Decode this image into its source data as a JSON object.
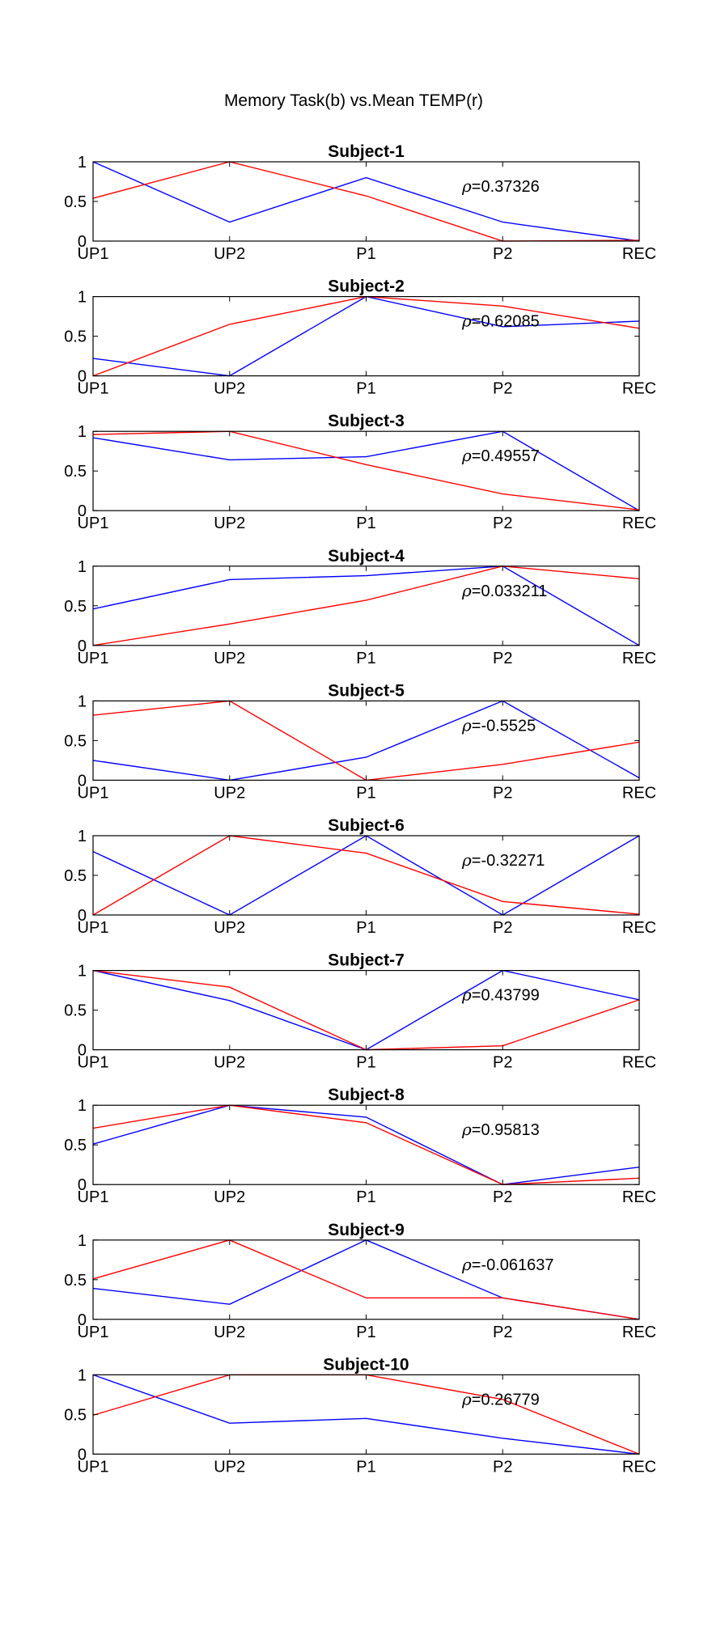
{
  "figure_title": "Memory Task(b) vs.Mean TEMP(r)",
  "colors": {
    "memory_task": "#0000ff",
    "mean_temp": "#ff0000",
    "axes": "#000000"
  },
  "chart_data": [
    {
      "type": "line",
      "title": "Subject-1",
      "categories": [
        "UP1",
        "UP2",
        "P1",
        "P2",
        "REC"
      ],
      "yticks": [
        "0",
        "0.5",
        "1"
      ],
      "ylim": [
        0,
        1
      ],
      "annotation": "=0.37326",
      "series": [
        {
          "color": "#0000ff",
          "values": [
            1.0,
            0.24,
            0.8,
            0.24,
            0.0
          ]
        },
        {
          "color": "#ff0000",
          "values": [
            0.54,
            1.0,
            0.57,
            0.0,
            0.01
          ]
        }
      ]
    },
    {
      "type": "line",
      "title": "Subject-2",
      "categories": [
        "UP1",
        "UP2",
        "P1",
        "P2",
        "REC"
      ],
      "yticks": [
        "0",
        "0.5",
        "1"
      ],
      "ylim": [
        0,
        1
      ],
      "annotation": "=0.62085",
      "series": [
        {
          "color": "#0000ff",
          "values": [
            0.22,
            0.0,
            1.0,
            0.62,
            0.69
          ]
        },
        {
          "color": "#ff0000",
          "values": [
            0.0,
            0.65,
            1.0,
            0.88,
            0.6
          ]
        }
      ]
    },
    {
      "type": "line",
      "title": "Subject-3",
      "categories": [
        "UP1",
        "UP2",
        "P1",
        "P2",
        "REC"
      ],
      "yticks": [
        "0",
        "0.5",
        "1"
      ],
      "ylim": [
        0,
        1
      ],
      "annotation": "=0.49557",
      "series": [
        {
          "color": "#0000ff",
          "values": [
            0.92,
            0.64,
            0.68,
            1.0,
            0.0
          ]
        },
        {
          "color": "#ff0000",
          "values": [
            0.96,
            1.0,
            0.58,
            0.21,
            0.01
          ]
        }
      ]
    },
    {
      "type": "line",
      "title": "Subject-4",
      "categories": [
        "UP1",
        "UP2",
        "P1",
        "P2",
        "REC"
      ],
      "yticks": [
        "0",
        "0.5",
        "1"
      ],
      "ylim": [
        0,
        1
      ],
      "annotation": "=0.033211",
      "series": [
        {
          "color": "#0000ff",
          "values": [
            0.46,
            0.83,
            0.88,
            1.0,
            0.0
          ]
        },
        {
          "color": "#ff0000",
          "values": [
            0.0,
            0.27,
            0.57,
            1.0,
            0.84
          ]
        }
      ]
    },
    {
      "type": "line",
      "title": "Subject-5",
      "categories": [
        "UP1",
        "UP2",
        "P1",
        "P2",
        "REC"
      ],
      "yticks": [
        "0",
        "0.5",
        "1"
      ],
      "ylim": [
        0,
        1
      ],
      "annotation": "=-0.5525",
      "series": [
        {
          "color": "#0000ff",
          "values": [
            0.25,
            0.0,
            0.29,
            1.0,
            0.03
          ]
        },
        {
          "color": "#ff0000",
          "values": [
            0.82,
            1.0,
            0.0,
            0.2,
            0.48
          ]
        }
      ]
    },
    {
      "type": "line",
      "title": "Subject-6",
      "categories": [
        "UP1",
        "UP2",
        "P1",
        "P2",
        "REC"
      ],
      "yticks": [
        "0",
        "0.5",
        "1"
      ],
      "ylim": [
        0,
        1
      ],
      "annotation": "=-0.32271",
      "series": [
        {
          "color": "#0000ff",
          "values": [
            0.8,
            0.0,
            1.0,
            0.0,
            1.0
          ]
        },
        {
          "color": "#ff0000",
          "values": [
            0.0,
            1.0,
            0.78,
            0.17,
            0.01
          ]
        }
      ]
    },
    {
      "type": "line",
      "title": "Subject-7",
      "categories": [
        "UP1",
        "UP2",
        "P1",
        "P2",
        "REC"
      ],
      "yticks": [
        "0",
        "0.5",
        "1"
      ],
      "ylim": [
        0,
        1
      ],
      "annotation": "=0.43799",
      "series": [
        {
          "color": "#0000ff",
          "values": [
            1.0,
            0.62,
            0.0,
            1.0,
            0.63
          ]
        },
        {
          "color": "#ff0000",
          "values": [
            1.0,
            0.79,
            0.0,
            0.05,
            0.63
          ]
        }
      ]
    },
    {
      "type": "line",
      "title": "Subject-8",
      "categories": [
        "UP1",
        "UP2",
        "P1",
        "P2",
        "REC"
      ],
      "yticks": [
        "0",
        "0.5",
        "1"
      ],
      "ylim": [
        0,
        1
      ],
      "annotation": "=0.95813",
      "series": [
        {
          "color": "#0000ff",
          "values": [
            0.51,
            1.0,
            0.85,
            0.0,
            0.22
          ]
        },
        {
          "color": "#ff0000",
          "values": [
            0.71,
            1.0,
            0.78,
            0.0,
            0.08
          ]
        }
      ]
    },
    {
      "type": "line",
      "title": "Subject-9",
      "categories": [
        "UP1",
        "UP2",
        "P1",
        "P2",
        "REC"
      ],
      "yticks": [
        "0",
        "0.5",
        "1"
      ],
      "ylim": [
        0,
        1
      ],
      "annotation": "=-0.061637",
      "series": [
        {
          "color": "#0000ff",
          "values": [
            0.39,
            0.19,
            1.0,
            0.27,
            0.0
          ]
        },
        {
          "color": "#ff0000",
          "values": [
            0.51,
            1.0,
            0.27,
            0.27,
            0.0
          ]
        }
      ]
    },
    {
      "type": "line",
      "title": "Subject-10",
      "categories": [
        "UP1",
        "UP2",
        "P1",
        "P2",
        "REC"
      ],
      "yticks": [
        "0",
        "0.5",
        "1"
      ],
      "ylim": [
        0,
        1
      ],
      "annotation": "=0.26779",
      "series": [
        {
          "color": "#0000ff",
          "values": [
            1.0,
            0.39,
            0.45,
            0.2,
            0.0
          ]
        },
        {
          "color": "#ff0000",
          "values": [
            0.49,
            1.0,
            1.0,
            0.69,
            0.0
          ]
        }
      ]
    }
  ]
}
